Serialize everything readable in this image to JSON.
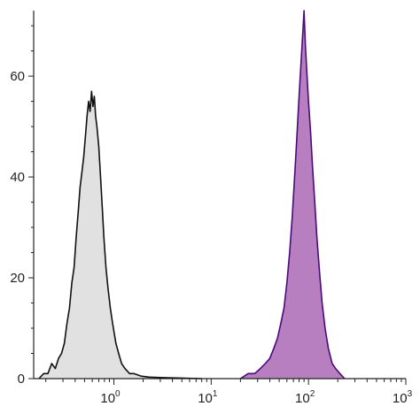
{
  "chart_data": {
    "type": "area",
    "title": "",
    "xlabel": "",
    "ylabel": "",
    "x_scale": "log",
    "xlim": [
      0.15,
      1000
    ],
    "ylim": [
      0,
      73
    ],
    "grid": false,
    "x_ticks": [
      {
        "value": 1,
        "base": "10",
        "exp": "0"
      },
      {
        "value": 10,
        "base": "10",
        "exp": "1"
      },
      {
        "value": 100,
        "base": "10",
        "exp": "2"
      },
      {
        "value": 1000,
        "base": "10",
        "exp": "3"
      }
    ],
    "y_ticks": [
      {
        "value": 0,
        "label": "0"
      },
      {
        "value": 20,
        "label": "20"
      },
      {
        "value": 40,
        "label": "40"
      },
      {
        "value": 60,
        "label": "60"
      }
    ],
    "series": [
      {
        "fill": "#e1e1e1",
        "stroke": "#111111",
        "points": [
          [
            0.17,
            0
          ],
          [
            0.19,
            1
          ],
          [
            0.21,
            1
          ],
          [
            0.23,
            3
          ],
          [
            0.25,
            2
          ],
          [
            0.27,
            4
          ],
          [
            0.29,
            5
          ],
          [
            0.31,
            7
          ],
          [
            0.33,
            11
          ],
          [
            0.35,
            14
          ],
          [
            0.37,
            19
          ],
          [
            0.39,
            22
          ],
          [
            0.41,
            28
          ],
          [
            0.43,
            33
          ],
          [
            0.45,
            38
          ],
          [
            0.47,
            41
          ],
          [
            0.49,
            44
          ],
          [
            0.51,
            48
          ],
          [
            0.53,
            52
          ],
          [
            0.55,
            55
          ],
          [
            0.57,
            53
          ],
          [
            0.59,
            57
          ],
          [
            0.61,
            54
          ],
          [
            0.63,
            56
          ],
          [
            0.65,
            52
          ],
          [
            0.67,
            50
          ],
          [
            0.7,
            46
          ],
          [
            0.73,
            40
          ],
          [
            0.76,
            34
          ],
          [
            0.79,
            28
          ],
          [
            0.83,
            22
          ],
          [
            0.87,
            18
          ],
          [
            0.92,
            14
          ],
          [
            0.97,
            11
          ],
          [
            1.05,
            7
          ],
          [
            1.12,
            5
          ],
          [
            1.2,
            3
          ],
          [
            1.3,
            2
          ],
          [
            1.45,
            1
          ],
          [
            1.6,
            1
          ],
          [
            1.9,
            0.5
          ],
          [
            2.3,
            0.3
          ],
          [
            3,
            0.2
          ],
          [
            5,
            0.1
          ],
          [
            8,
            0
          ]
        ]
      },
      {
        "fill": "#b77fc0",
        "stroke": "#4a0a7a",
        "points": [
          [
            20,
            0
          ],
          [
            24,
            1
          ],
          [
            28,
            1
          ],
          [
            32,
            2
          ],
          [
            36,
            3
          ],
          [
            40,
            4
          ],
          [
            44,
            6
          ],
          [
            48,
            8
          ],
          [
            52,
            11
          ],
          [
            56,
            14
          ],
          [
            60,
            19
          ],
          [
            64,
            25
          ],
          [
            68,
            32
          ],
          [
            72,
            40
          ],
          [
            76,
            48
          ],
          [
            80,
            56
          ],
          [
            84,
            63
          ],
          [
            87,
            68
          ],
          [
            90,
            73
          ],
          [
            93,
            66
          ],
          [
            96,
            61
          ],
          [
            100,
            55
          ],
          [
            105,
            49
          ],
          [
            110,
            42
          ],
          [
            116,
            35
          ],
          [
            122,
            28
          ],
          [
            130,
            21
          ],
          [
            138,
            15
          ],
          [
            148,
            10
          ],
          [
            160,
            6
          ],
          [
            175,
            3
          ],
          [
            190,
            2
          ],
          [
            210,
            1
          ],
          [
            235,
            0
          ]
        ]
      }
    ]
  }
}
